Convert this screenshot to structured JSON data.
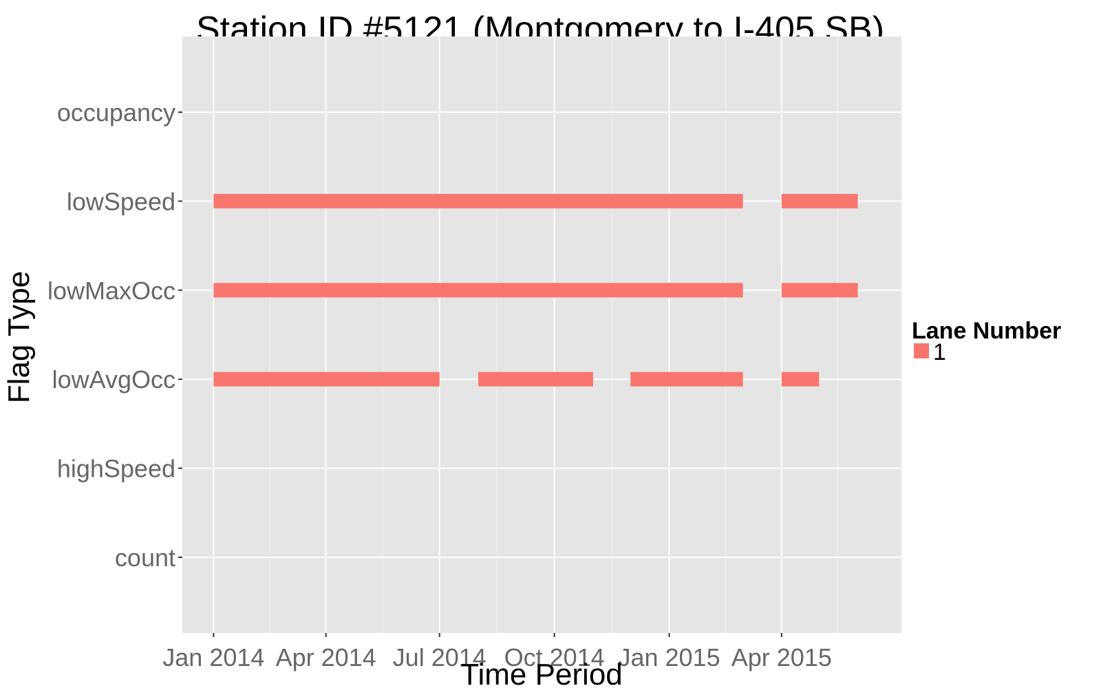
{
  "chart_data": {
    "type": "bar",
    "orientation": "horizontal-timeline",
    "title": "Station ID #5121 (Montgomery to I-405 SB)",
    "xlabel": "Time Period",
    "ylabel": "Flag Type",
    "x_ticks": [
      "Jan 2014",
      "Apr 2014",
      "Jul 2014",
      "Oct 2014",
      "Jan 2015",
      "Apr 2015"
    ],
    "x_tick_dates": [
      "2014-01-01",
      "2014-04-01",
      "2014-07-01",
      "2014-10-01",
      "2015-01-01",
      "2015-04-01"
    ],
    "xlim": [
      "2013-12-07",
      "2015-07-06"
    ],
    "categories": [
      "occupancy",
      "lowSpeed",
      "lowMaxOcc",
      "lowAvgOcc",
      "highSpeed",
      "count"
    ],
    "legend": {
      "title": "Lane Number",
      "position": "right"
    },
    "grid": true,
    "series": [
      {
        "name": "1",
        "color": "#F8766D",
        "segments": [
          {
            "category": "lowSpeed",
            "start": "2014-01-01",
            "end": "2015-03-01"
          },
          {
            "category": "lowSpeed",
            "start": "2015-04-01",
            "end": "2015-06-01"
          },
          {
            "category": "lowMaxOcc",
            "start": "2014-01-01",
            "end": "2015-03-01"
          },
          {
            "category": "lowMaxOcc",
            "start": "2015-04-01",
            "end": "2015-06-01"
          },
          {
            "category": "lowAvgOcc",
            "start": "2014-01-01",
            "end": "2014-07-01"
          },
          {
            "category": "lowAvgOcc",
            "start": "2014-08-01",
            "end": "2014-11-01"
          },
          {
            "category": "lowAvgOcc",
            "start": "2014-12-01",
            "end": "2015-03-01"
          },
          {
            "category": "lowAvgOcc",
            "start": "2015-04-01",
            "end": "2015-05-01"
          }
        ]
      }
    ]
  }
}
